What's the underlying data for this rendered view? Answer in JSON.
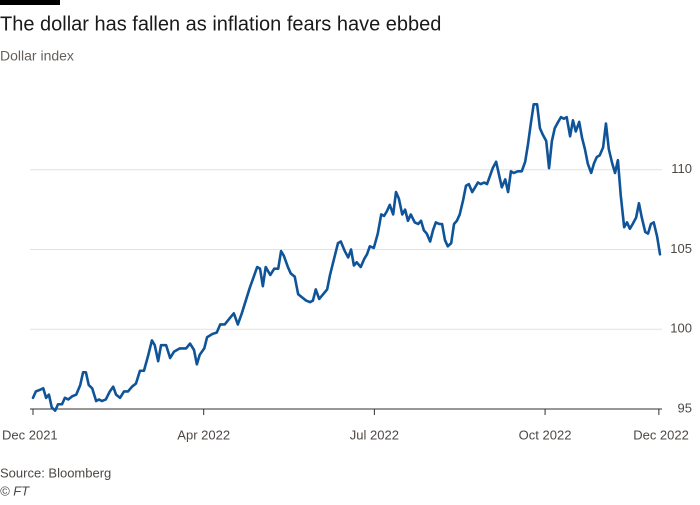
{
  "chart_data": {
    "type": "line",
    "title": "The dollar has fallen as inflation fears have ebbed",
    "subtitle": "Dollar index",
    "source": "Source: Bloomberg",
    "credit": "© FT",
    "x": [
      0,
      0.05,
      0.12,
      0.18,
      0.23,
      0.28,
      0.33,
      0.39,
      0.44,
      0.51,
      0.56,
      0.62,
      0.69,
      0.76,
      0.83,
      0.88,
      0.93,
      0.98,
      1.04,
      1.11,
      1.16,
      1.21,
      1.28,
      1.35,
      1.41,
      1.46,
      1.53,
      1.6,
      1.67,
      1.74,
      1.81,
      1.88,
      1.95,
      2.02,
      2.09,
      2.14,
      2.2,
      2.25,
      2.34,
      2.41,
      2.48,
      2.58,
      2.69,
      2.76,
      2.83,
      2.88,
      2.93,
      3.01,
      3.06,
      3.15,
      3.23,
      3.29,
      3.37,
      3.46,
      3.53,
      3.6,
      3.67,
      3.74,
      3.81,
      3.88,
      3.94,
      3.99,
      4.04,
      4.09,
      4.17,
      4.24,
      4.31,
      4.36,
      4.41,
      4.48,
      4.53,
      4.6,
      4.66,
      4.73,
      4.8,
      4.87,
      4.92,
      4.97,
      5.03,
      5.1,
      5.17,
      5.22,
      5.29,
      5.36,
      5.41,
      5.48,
      5.54,
      5.59,
      5.64,
      5.69,
      5.76,
      5.82,
      5.87,
      5.92,
      5.99,
      6.06,
      6.12,
      6.17,
      6.22,
      6.27,
      6.33,
      6.38,
      6.43,
      6.49,
      6.54,
      6.59,
      6.64,
      6.71,
      6.77,
      6.82,
      6.87,
      6.92,
      6.98,
      7.03,
      7.08,
      7.14,
      7.19,
      7.24,
      7.29,
      7.35,
      7.4,
      7.45,
      7.5,
      7.56,
      7.61,
      7.66,
      7.72,
      7.77,
      7.82,
      7.87,
      7.93,
      7.98,
      8.03,
      8.08,
      8.14,
      8.19,
      8.24,
      8.3,
      8.35,
      8.4,
      8.45,
      8.52,
      8.59,
      8.65,
      8.7,
      8.75,
      8.8,
      8.86,
      8.91,
      8.96,
      9.02,
      9.07,
      9.12,
      9.17,
      9.23,
      9.28,
      9.33,
      9.38,
      9.44,
      9.49,
      9.54,
      9.6,
      9.65,
      9.7,
      9.75,
      9.81,
      9.86,
      9.91,
      9.96,
      10.02,
      10.07,
      10.12,
      10.18,
      10.23,
      10.28,
      10.33,
      10.39,
      10.44,
      10.49,
      10.54,
      10.6,
      10.65,
      10.7,
      10.76,
      10.81,
      10.86,
      10.91,
      10.97,
      11.02
    ],
    "series": [
      {
        "name": "Dollar index",
        "color": "#0f5499",
        "values": [
          95.7,
          96.1,
          96.2,
          96.3,
          95.7,
          95.9,
          95.1,
          94.9,
          95.3,
          95.3,
          95.7,
          95.6,
          95.8,
          95.9,
          96.5,
          97.3,
          97.3,
          96.5,
          96.3,
          95.5,
          95.6,
          95.5,
          95.6,
          96.1,
          96.4,
          95.9,
          95.7,
          96.1,
          96.1,
          96.4,
          96.6,
          97.4,
          97.4,
          98.3,
          99.3,
          99.0,
          98.0,
          99.0,
          99.0,
          98.2,
          98.6,
          98.8,
          98.8,
          99.1,
          98.7,
          97.8,
          98.4,
          98.8,
          99.5,
          99.7,
          99.8,
          100.3,
          100.3,
          100.7,
          101.0,
          100.3,
          101.0,
          101.8,
          102.6,
          103.3,
          103.9,
          103.8,
          102.7,
          103.9,
          103.4,
          103.8,
          103.8,
          104.9,
          104.6,
          103.9,
          103.5,
          103.3,
          102.2,
          102.0,
          101.8,
          101.7,
          101.8,
          102.5,
          101.9,
          102.2,
          102.5,
          103.4,
          104.4,
          105.4,
          105.5,
          104.9,
          104.5,
          105.0,
          104.0,
          104.2,
          103.9,
          104.4,
          104.7,
          105.2,
          105.1,
          106.0,
          107.2,
          107.1,
          107.4,
          107.8,
          107.2,
          108.6,
          108.2,
          107.2,
          107.5,
          106.8,
          107.2,
          106.7,
          106.6,
          106.8,
          106.2,
          106.0,
          105.5,
          106.2,
          106.7,
          106.6,
          106.6,
          105.6,
          105.2,
          105.4,
          106.6,
          106.8,
          107.2,
          108.1,
          109.0,
          109.1,
          108.6,
          108.9,
          109.2,
          109.1,
          109.2,
          109.1,
          109.6,
          110.1,
          110.5,
          109.7,
          108.9,
          109.4,
          108.6,
          109.9,
          109.8,
          109.9,
          109.9,
          110.5,
          111.6,
          112.9,
          114.1,
          114.1,
          112.6,
          112.2,
          111.8,
          110.1,
          111.8,
          112.6,
          113.0,
          113.3,
          113.2,
          113.3,
          112.1,
          113.1,
          112.4,
          113.0,
          112.0,
          111.3,
          110.4,
          109.8,
          110.4,
          110.8,
          110.9,
          111.4,
          112.9,
          111.3,
          110.4,
          109.8,
          110.6,
          108.4,
          106.4,
          106.7,
          106.3,
          106.6,
          107.0,
          107.9,
          107.0,
          106.1,
          106.0,
          106.6,
          106.7,
          105.8,
          104.7
        ]
      }
    ],
    "xlim": [
      0,
      11.02
    ],
    "xticks": [
      {
        "value": 0,
        "label": "Dec 2021"
      },
      {
        "value": 3,
        "label": "Apr 2022"
      },
      {
        "value": 6,
        "label": "Jul 2022"
      },
      {
        "value": 9,
        "label": "Oct 2022"
      },
      {
        "value": 11,
        "label": "Dec 2022"
      }
    ],
    "ylim": [
      94.5,
      115
    ],
    "yticks": [
      95,
      100,
      105,
      110
    ],
    "grid": true
  }
}
